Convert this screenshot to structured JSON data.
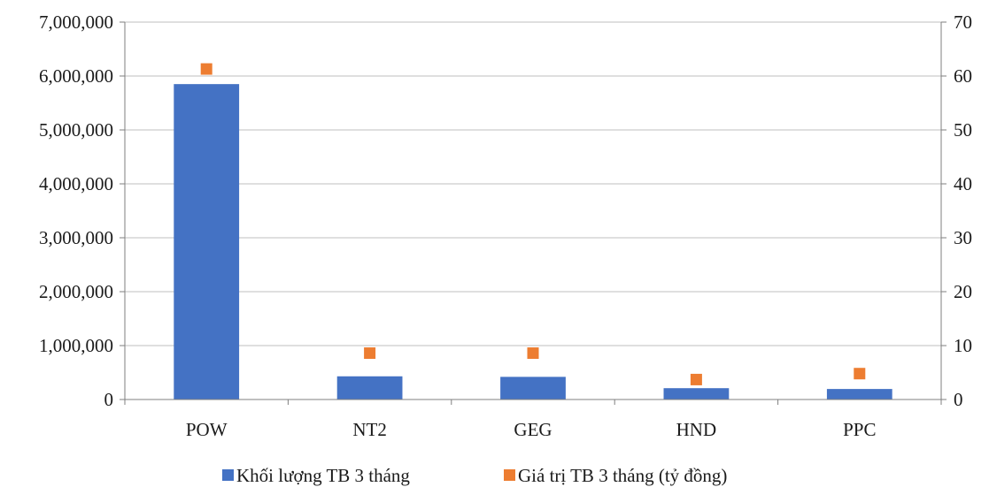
{
  "chart_data": {
    "type": "bar",
    "categories": [
      "POW",
      "NT2",
      "GEG",
      "HND",
      "PPC"
    ],
    "series": [
      {
        "name": "Khối lượng TB 3 tháng",
        "kind": "bar",
        "axis": "left",
        "color": "#4472C4",
        "marker": "square",
        "values": [
          5850000,
          430000,
          420000,
          210000,
          195000
        ]
      },
      {
        "name": "Giá trị TB 3 tháng (tỷ đồng)",
        "kind": "point",
        "axis": "right",
        "color": "#ED7D31",
        "marker": "square",
        "values": [
          61.3,
          8.6,
          8.6,
          3.7,
          4.8
        ]
      }
    ],
    "y_left": {
      "min": 0,
      "max": 7000000,
      "ticks": [
        "0",
        "1,000,000",
        "2,000,000",
        "3,000,000",
        "4,000,000",
        "5,000,000",
        "6,000,000",
        "7,000,000"
      ]
    },
    "y_right": {
      "min": 0,
      "max": 70,
      "ticks": [
        "0",
        "10",
        "20",
        "30",
        "40",
        "50",
        "60",
        "70"
      ]
    },
    "grid": true,
    "legend_position": "bottom",
    "title": "",
    "xlabel": "",
    "ylabel": ""
  }
}
